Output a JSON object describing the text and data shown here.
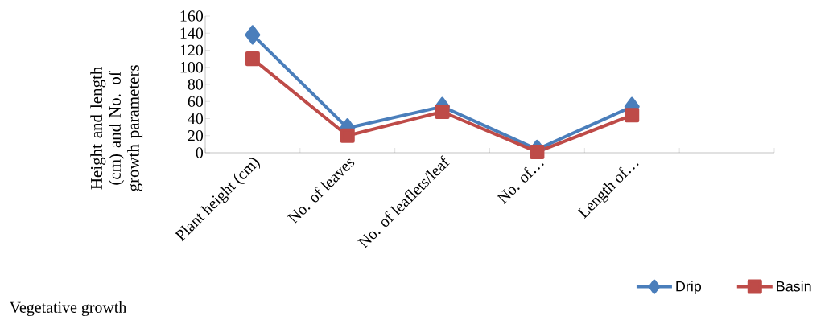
{
  "chart_data": {
    "type": "line",
    "xlabel": "Vegetative growth",
    "ylabel": "Height and length (cm) and No. of growth parameters",
    "categories": [
      "Plant height (cm)",
      "No. of leaves",
      "No. of leaflets/leaf",
      "No. of…",
      "Length of…",
      null
    ],
    "series": [
      {
        "name": "Drip",
        "color": "#4a7ebb",
        "marker": "diamond",
        "values": [
          138,
          29,
          54,
          4,
          54,
          null
        ]
      },
      {
        "name": "Basin",
        "color": "#be4b48",
        "marker": "square",
        "values": [
          110,
          20,
          48,
          1,
          44,
          null
        ]
      }
    ],
    "ylim": [
      0,
      160
    ],
    "yticks": [
      0,
      20,
      40,
      60,
      80,
      100,
      120,
      140,
      160
    ],
    "grid": false,
    "legend": "bottom right"
  }
}
